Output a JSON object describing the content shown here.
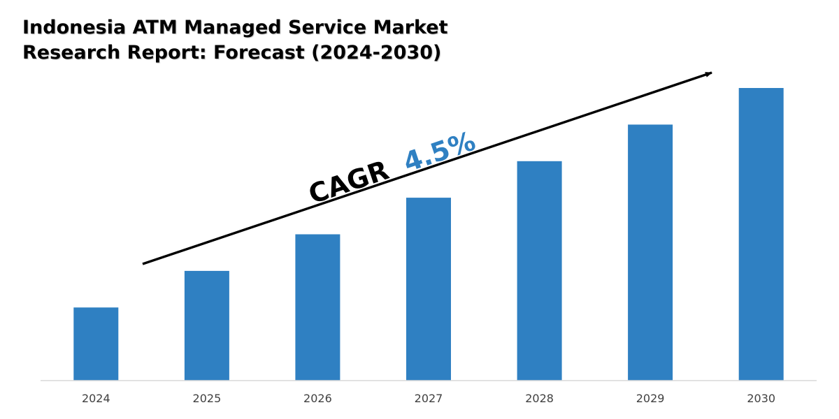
{
  "chart_data": {
    "type": "bar",
    "title": "Indonesia ATM Managed Service Market Research Report: Forecast (2024-2030)",
    "categories": [
      "2024",
      "2025",
      "2026",
      "2027",
      "2028",
      "2029",
      "2030"
    ],
    "series": [
      {
        "name": "Market size (relative)",
        "values": [
          1.0,
          1.5,
          2.0,
          2.5,
          3.0,
          3.5,
          4.0
        ]
      }
    ],
    "xlabel": "",
    "ylabel": "",
    "ylim": [
      0,
      4.0
    ],
    "grid": false,
    "legend": "none",
    "annotation": {
      "prefix": "CAGR",
      "value": "4.5%"
    }
  },
  "colors": {
    "bar": "#2f80c2",
    "axis": "#d9d9d9",
    "arrow": "#000000",
    "cagr_prefix": "#000000",
    "cagr_value": "#2f80c2"
  }
}
